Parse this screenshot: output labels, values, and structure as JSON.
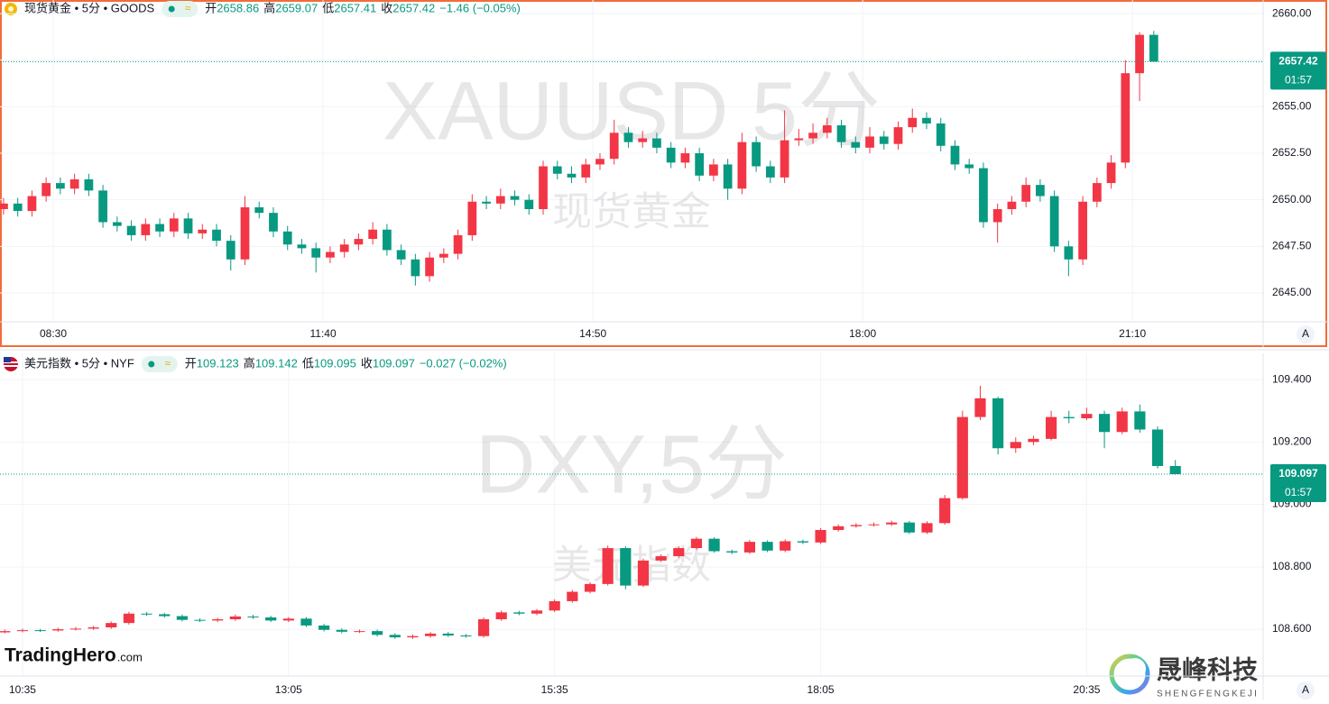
{
  "chart_data": [
    {
      "type": "candlestick",
      "symbol": "现货黄金 • 5分 • GOODS",
      "ohlc": [
        {
          "label": "开",
          "value": "2658.86"
        },
        {
          "label": "高",
          "value": "2659.07"
        },
        {
          "label": "低",
          "value": "2657.41"
        },
        {
          "label": "收",
          "value": "2657.42"
        }
      ],
      "change": "−1.46 (−0.05%)",
      "watermark": "XAUUSD 5分",
      "watermark_sub": "现货黄金",
      "up_color": "#f23645",
      "down_color": "#089981",
      "last_price": 2657.42,
      "countdown": "01:57",
      "auto_button": "A",
      "xlim": [
        -7.5,
        170.4
      ],
      "xticks": [
        {
          "value": 0,
          "label": "08:30"
        },
        {
          "value": 38,
          "label": "11:40"
        },
        {
          "value": 76,
          "label": "14:50"
        },
        {
          "value": 114,
          "label": "18:00"
        },
        {
          "value": 152,
          "label": "21:10"
        }
      ],
      "ylim": [
        2643.45,
        2660.73
      ],
      "yticks": [
        {
          "value": 2645,
          "label": "2645.00"
        },
        {
          "value": 2647.5,
          "label": "2647.50"
        },
        {
          "value": 2650,
          "label": "2650.00"
        },
        {
          "value": 2652.5,
          "label": "2652.50"
        },
        {
          "value": 2655,
          "label": "2655.00"
        },
        {
          "value": 2657.5,
          "label": "2657.50"
        },
        {
          "value": 2660,
          "label": "2660.00"
        }
      ],
      "x": [
        -7,
        -5,
        -3,
        -1,
        1,
        3,
        5,
        7,
        9,
        11,
        13,
        15,
        17,
        19,
        21,
        23,
        25,
        27,
        29,
        31,
        33,
        35,
        37,
        39,
        41,
        43,
        45,
        47,
        49,
        51,
        53,
        55,
        57,
        59,
        61,
        63,
        65,
        67,
        69,
        71,
        73,
        75,
        77,
        79,
        81,
        83,
        85,
        87,
        89,
        91,
        93,
        95,
        97,
        99,
        101,
        103,
        105,
        107,
        109,
        111,
        113,
        115,
        117,
        119,
        121,
        123,
        125,
        127,
        129,
        131,
        133,
        135,
        137,
        139,
        141,
        143,
        145,
        147,
        149,
        151,
        153,
        155
      ],
      "candles": [
        [
          2649.5,
          2650.1,
          2649.2,
          2649.8
        ],
        [
          2649.8,
          2650.1,
          2649.1,
          2649.4
        ],
        [
          2649.4,
          2650.5,
          2649.1,
          2650.2
        ],
        [
          2650.2,
          2651.2,
          2649.9,
          2650.9
        ],
        [
          2650.9,
          2651.2,
          2650.3,
          2650.6
        ],
        [
          2650.6,
          2651.4,
          2650.3,
          2651.1
        ],
        [
          2651.1,
          2651.4,
          2650.2,
          2650.5
        ],
        [
          2650.5,
          2650.8,
          2648.5,
          2648.8
        ],
        [
          2648.8,
          2649.1,
          2648.3,
          2648.6
        ],
        [
          2648.6,
          2648.9,
          2647.8,
          2648.1
        ],
        [
          2648.1,
          2649.0,
          2647.8,
          2648.7
        ],
        [
          2648.7,
          2649.0,
          2648.0,
          2648.3
        ],
        [
          2648.3,
          2649.3,
          2648.0,
          2649.0
        ],
        [
          2649.0,
          2649.3,
          2647.9,
          2648.2
        ],
        [
          2648.2,
          2648.7,
          2647.9,
          2648.4
        ],
        [
          2648.4,
          2648.7,
          2647.5,
          2647.8
        ],
        [
          2647.8,
          2648.1,
          2646.2,
          2646.8
        ],
        [
          2646.8,
          2650.2,
          2646.5,
          2649.6
        ],
        [
          2649.6,
          2649.9,
          2649.0,
          2649.3
        ],
        [
          2649.3,
          2649.6,
          2648.0,
          2648.3
        ],
        [
          2648.3,
          2648.6,
          2647.3,
          2647.6
        ],
        [
          2647.6,
          2647.9,
          2647.1,
          2647.4
        ],
        [
          2647.4,
          2647.7,
          2646.1,
          2646.9
        ],
        [
          2646.9,
          2647.5,
          2646.6,
          2647.2
        ],
        [
          2647.2,
          2647.9,
          2646.9,
          2647.6
        ],
        [
          2647.6,
          2648.2,
          2647.3,
          2647.9
        ],
        [
          2647.9,
          2648.8,
          2647.6,
          2648.4
        ],
        [
          2648.4,
          2648.7,
          2647.0,
          2647.3
        ],
        [
          2647.3,
          2647.6,
          2646.5,
          2646.8
        ],
        [
          2646.8,
          2647.1,
          2645.4,
          2645.9
        ],
        [
          2645.9,
          2647.2,
          2645.6,
          2646.9
        ],
        [
          2646.9,
          2647.4,
          2646.6,
          2647.1
        ],
        [
          2647.1,
          2648.4,
          2646.8,
          2648.1
        ],
        [
          2648.1,
          2650.3,
          2647.8,
          2649.9
        ],
        [
          2649.9,
          2650.2,
          2649.5,
          2649.8
        ],
        [
          2649.8,
          2650.6,
          2649.5,
          2650.2
        ],
        [
          2650.2,
          2650.5,
          2649.7,
          2650.0
        ],
        [
          2650.0,
          2650.3,
          2649.2,
          2649.5
        ],
        [
          2649.5,
          2652.1,
          2649.2,
          2651.8
        ],
        [
          2651.8,
          2652.1,
          2651.1,
          2651.4
        ],
        [
          2651.4,
          2651.8,
          2650.9,
          2651.2
        ],
        [
          2651.2,
          2652.2,
          2650.9,
          2651.9
        ],
        [
          2651.9,
          2652.5,
          2651.6,
          2652.2
        ],
        [
          2652.2,
          2654.3,
          2651.9,
          2653.6
        ],
        [
          2653.6,
          2653.9,
          2652.8,
          2653.1
        ],
        [
          2653.1,
          2653.7,
          2652.8,
          2653.3
        ],
        [
          2653.3,
          2653.6,
          2652.5,
          2652.8
        ],
        [
          2652.8,
          2653.1,
          2651.7,
          2652.0
        ],
        [
          2652.0,
          2652.8,
          2651.7,
          2652.5
        ],
        [
          2652.5,
          2652.8,
          2651.0,
          2651.3
        ],
        [
          2651.3,
          2652.2,
          2651.0,
          2651.9
        ],
        [
          2651.9,
          2652.2,
          2650.0,
          2650.6
        ],
        [
          2650.6,
          2653.6,
          2650.3,
          2653.1
        ],
        [
          2653.1,
          2653.4,
          2651.5,
          2651.8
        ],
        [
          2651.8,
          2652.1,
          2650.9,
          2651.2
        ],
        [
          2651.2,
          2654.8,
          2650.9,
          2653.2
        ],
        [
          2653.2,
          2653.8,
          2652.9,
          2653.3
        ],
        [
          2653.3,
          2654.1,
          2653.0,
          2653.6
        ],
        [
          2653.6,
          2654.4,
          2653.3,
          2654.0
        ],
        [
          2654.0,
          2654.3,
          2652.8,
          2653.1
        ],
        [
          2653.1,
          2653.4,
          2652.5,
          2652.8
        ],
        [
          2652.8,
          2653.9,
          2652.5,
          2653.4
        ],
        [
          2653.4,
          2653.7,
          2652.7,
          2653.0
        ],
        [
          2653.0,
          2654.2,
          2652.7,
          2653.9
        ],
        [
          2653.9,
          2654.9,
          2653.6,
          2654.4
        ],
        [
          2654.4,
          2654.7,
          2653.8,
          2654.1
        ],
        [
          2654.1,
          2654.4,
          2652.6,
          2652.9
        ],
        [
          2652.9,
          2653.2,
          2651.6,
          2651.9
        ],
        [
          2651.9,
          2652.2,
          2651.4,
          2651.7
        ],
        [
          2651.7,
          2652.0,
          2648.5,
          2648.8
        ],
        [
          2648.8,
          2649.8,
          2647.7,
          2649.5
        ],
        [
          2649.5,
          2650.2,
          2649.2,
          2649.9
        ],
        [
          2649.9,
          2651.2,
          2649.6,
          2650.8
        ],
        [
          2650.8,
          2651.1,
          2649.9,
          2650.2
        ],
        [
          2650.2,
          2650.5,
          2647.2,
          2647.5
        ],
        [
          2647.5,
          2647.8,
          2645.9,
          2646.8
        ],
        [
          2646.8,
          2650.2,
          2646.5,
          2649.9
        ],
        [
          2649.9,
          2651.2,
          2649.6,
          2650.9
        ],
        [
          2650.9,
          2652.4,
          2650.6,
          2652.0
        ],
        [
          2652.0,
          2657.5,
          2651.7,
          2656.8
        ],
        [
          2656.8,
          2659.0,
          2655.3,
          2658.86
        ],
        [
          2658.86,
          2659.07,
          2657.41,
          2657.42
        ]
      ]
    },
    {
      "type": "candlestick",
      "symbol": "美元指数 • 5分 • NYF",
      "ohlc": [
        {
          "label": "开",
          "value": "109.123"
        },
        {
          "label": "高",
          "value": "109.142"
        },
        {
          "label": "低",
          "value": "109.095"
        },
        {
          "label": "收",
          "value": "109.097"
        }
      ],
      "change": "−0.027 (−0.02%)",
      "watermark": "DXY,5分",
      "watermark_sub": "美元指数",
      "up_color": "#f23645",
      "down_color": "#089981",
      "last_price": 109.097,
      "countdown": "01:57",
      "auto_button": "A",
      "xlim": [
        -2.54,
        139.9
      ],
      "xticks": [
        {
          "value": 0,
          "label": "10:35"
        },
        {
          "value": 30,
          "label": "13:05"
        },
        {
          "value": 60,
          "label": "15:35"
        },
        {
          "value": 90,
          "label": "18:05"
        },
        {
          "value": 120,
          "label": "20:35"
        }
      ],
      "ylim": [
        108.45,
        109.484
      ],
      "yticks": [
        {
          "value": 108.6,
          "label": "108.600"
        },
        {
          "value": 108.8,
          "label": "108.800"
        },
        {
          "value": 109,
          "label": "109.000"
        },
        {
          "value": 109.2,
          "label": "109.200"
        },
        {
          "value": 109.4,
          "label": "109.400"
        }
      ],
      "x": [
        -2,
        0,
        2,
        4,
        6,
        8,
        10,
        12,
        14,
        16,
        18,
        20,
        22,
        24,
        26,
        28,
        30,
        32,
        34,
        36,
        38,
        40,
        42,
        44,
        46,
        48,
        50,
        52,
        54,
        56,
        58,
        60,
        62,
        64,
        66,
        68,
        70,
        72,
        74,
        76,
        78,
        80,
        82,
        84,
        86,
        88,
        90,
        92,
        94,
        96,
        98,
        100,
        102,
        104,
        106,
        108,
        110,
        112,
        114,
        116,
        118,
        120,
        122,
        124,
        126,
        128,
        130
      ],
      "candles": [
        [
          108.59,
          108.599,
          108.587,
          108.594
        ],
        [
          108.594,
          108.602,
          108.59,
          108.597
        ],
        [
          108.597,
          108.601,
          108.591,
          108.596
        ],
        [
          108.596,
          108.605,
          108.592,
          108.6
        ],
        [
          108.6,
          108.607,
          108.596,
          108.602
        ],
        [
          108.602,
          108.611,
          108.598,
          108.606
        ],
        [
          108.606,
          108.625,
          108.601,
          108.62
        ],
        [
          108.62,
          108.656,
          108.615,
          108.65
        ],
        [
          108.65,
          108.655,
          108.643,
          108.648
        ],
        [
          108.648,
          108.653,
          108.637,
          108.642
        ],
        [
          108.642,
          108.647,
          108.625,
          108.63
        ],
        [
          108.63,
          108.635,
          108.623,
          108.628
        ],
        [
          108.628,
          108.637,
          108.623,
          108.632
        ],
        [
          108.632,
          108.647,
          108.627,
          108.641
        ],
        [
          108.641,
          108.646,
          108.633,
          108.638
        ],
        [
          108.638,
          108.643,
          108.623,
          108.628
        ],
        [
          108.628,
          108.639,
          108.623,
          108.634
        ],
        [
          108.634,
          108.639,
          108.607,
          108.612
        ],
        [
          108.612,
          108.617,
          108.593,
          108.598
        ],
        [
          108.598,
          108.603,
          108.587,
          108.592
        ],
        [
          108.592,
          108.599,
          108.588,
          108.594
        ],
        [
          108.594,
          108.599,
          108.577,
          108.582
        ],
        [
          108.582,
          108.587,
          108.569,
          108.574
        ],
        [
          108.574,
          108.583,
          108.569,
          108.578
        ],
        [
          108.578,
          108.591,
          108.573,
          108.586
        ],
        [
          108.586,
          108.591,
          108.575,
          108.58
        ],
        [
          108.58,
          108.585,
          108.573,
          108.578
        ],
        [
          108.578,
          108.638,
          108.573,
          108.632
        ],
        [
          108.632,
          108.66,
          108.627,
          108.654
        ],
        [
          108.654,
          108.659,
          108.645,
          108.65
        ],
        [
          108.65,
          108.665,
          108.645,
          108.66
        ],
        [
          108.66,
          108.696,
          108.655,
          108.69
        ],
        [
          108.69,
          108.726,
          108.685,
          108.72
        ],
        [
          108.72,
          108.751,
          108.715,
          108.745
        ],
        [
          108.745,
          108.868,
          108.74,
          108.86
        ],
        [
          108.86,
          108.866,
          108.728,
          108.74
        ],
        [
          108.74,
          108.826,
          108.735,
          108.82
        ],
        [
          108.82,
          108.84,
          108.815,
          108.834
        ],
        [
          108.834,
          108.866,
          108.829,
          108.86
        ],
        [
          108.86,
          108.896,
          108.855,
          108.89
        ],
        [
          108.89,
          108.895,
          108.845,
          108.85
        ],
        [
          108.85,
          108.855,
          108.841,
          108.846
        ],
        [
          108.846,
          108.886,
          108.841,
          108.88
        ],
        [
          108.88,
          108.885,
          108.847,
          108.852
        ],
        [
          108.852,
          108.888,
          108.847,
          108.882
        ],
        [
          108.882,
          108.887,
          108.873,
          108.878
        ],
        [
          108.878,
          108.924,
          108.873,
          108.918
        ],
        [
          108.918,
          108.936,
          108.913,
          108.93
        ],
        [
          108.93,
          108.94,
          108.925,
          108.934
        ],
        [
          108.934,
          108.942,
          108.929,
          108.936
        ],
        [
          108.936,
          108.948,
          108.931,
          108.942
        ],
        [
          108.942,
          108.947,
          108.905,
          108.91
        ],
        [
          108.91,
          108.946,
          108.905,
          108.94
        ],
        [
          108.94,
          109.03,
          108.935,
          109.02
        ],
        [
          109.02,
          109.3,
          109.015,
          109.28
        ],
        [
          109.28,
          109.38,
          109.27,
          109.34
        ],
        [
          109.34,
          109.345,
          109.16,
          109.18
        ],
        [
          109.18,
          109.215,
          109.165,
          109.2
        ],
        [
          109.2,
          109.22,
          109.19,
          109.21
        ],
        [
          109.21,
          109.3,
          109.205,
          109.28
        ],
        [
          109.28,
          109.3,
          109.26,
          109.276
        ],
        [
          109.276,
          109.31,
          109.27,
          109.29
        ],
        [
          109.29,
          109.3,
          109.18,
          109.232
        ],
        [
          109.232,
          109.31,
          109.225,
          109.298
        ],
        [
          109.298,
          109.32,
          109.23,
          109.24
        ],
        [
          109.24,
          109.25,
          109.115,
          109.123
        ],
        [
          109.123,
          109.142,
          109.095,
          109.097
        ]
      ]
    }
  ],
  "branding": {
    "left": "TradingHero",
    "left_suffix": ".com",
    "right": "晟峰科技",
    "right_sub": "SHENGFENGKEJI"
  }
}
